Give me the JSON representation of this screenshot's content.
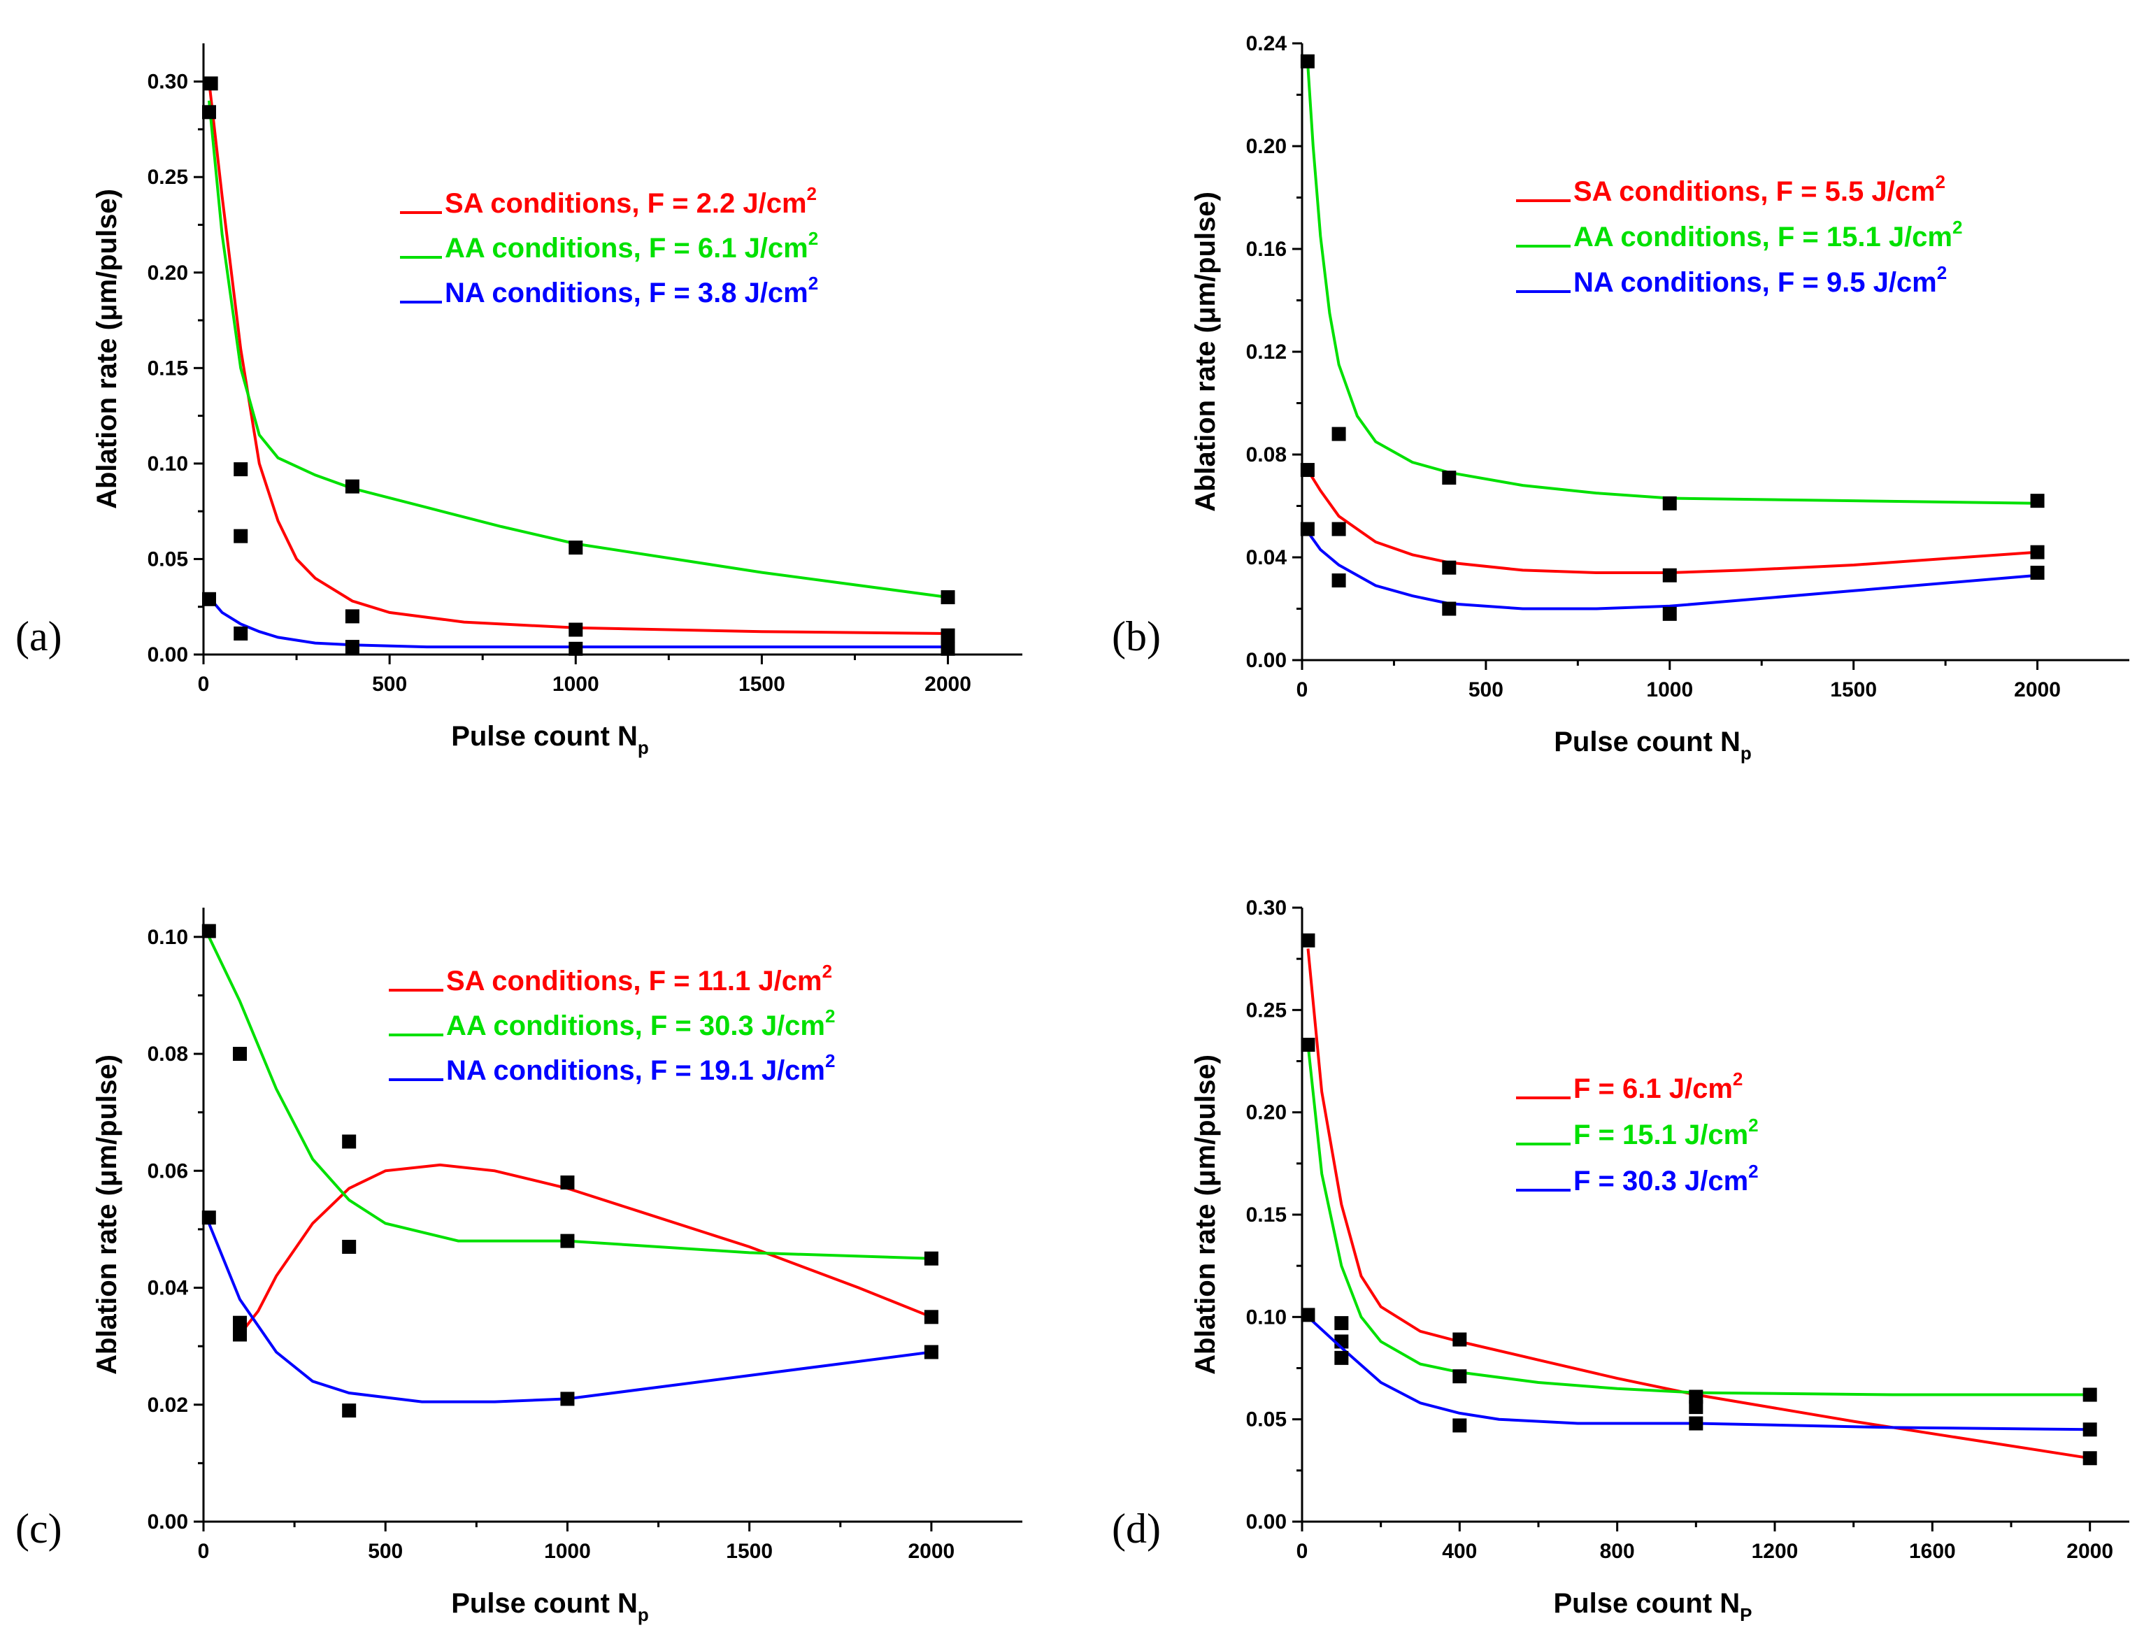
{
  "figure": {
    "panels": [
      "(a)",
      "(b)",
      "(c)",
      "(d)"
    ]
  },
  "chart_data": [
    {
      "id": "a",
      "panel_label": "(a)",
      "type": "scatter",
      "xlabel": "Pulse count N",
      "xlabel_sub": "p",
      "ylabel": "Ablation rate (μm/pulse)",
      "xlim": [
        0,
        2200
      ],
      "ylim": [
        0,
        0.32
      ],
      "xticks": [
        0,
        500,
        1000,
        1500,
        2000
      ],
      "xtick_labels": [
        "0",
        "500",
        "1000",
        "1500",
        "2000"
      ],
      "yticks": [
        0,
        0.05,
        0.1,
        0.15,
        0.2,
        0.25,
        0.3
      ],
      "ytick_labels": [
        "0.00",
        "0.05",
        "0.10",
        "0.15",
        "0.20",
        "0.25",
        "0.30"
      ],
      "legend_position": "top-right",
      "series": [
        {
          "name": "SA conditions, F = 2.2 J/cm",
          "sup": "2",
          "color": "#ff0000",
          "points": [
            [
              20,
              0.299
            ],
            [
              100,
              0.062
            ],
            [
              400,
              0.02
            ],
            [
              1000,
              0.013
            ],
            [
              2000,
              0.01
            ]
          ],
          "fit": [
            [
              15,
              0.3
            ],
            [
              50,
              0.24
            ],
            [
              100,
              0.16
            ],
            [
              150,
              0.1
            ],
            [
              200,
              0.07
            ],
            [
              250,
              0.05
            ],
            [
              300,
              0.04
            ],
            [
              400,
              0.028
            ],
            [
              500,
              0.022
            ],
            [
              700,
              0.017
            ],
            [
              1000,
              0.014
            ],
            [
              1500,
              0.012
            ],
            [
              2000,
              0.011
            ]
          ]
        },
        {
          "name": "AA conditions, F = 6.1 J/cm",
          "sup": "2",
          "color": "#00e000",
          "points": [
            [
              15,
              0.284
            ],
            [
              100,
              0.097
            ],
            [
              400,
              0.088
            ],
            [
              1000,
              0.056
            ],
            [
              2000,
              0.03
            ]
          ],
          "fit": [
            [
              15,
              0.29
            ],
            [
              50,
              0.22
            ],
            [
              100,
              0.15
            ],
            [
              150,
              0.115
            ],
            [
              200,
              0.103
            ],
            [
              300,
              0.094
            ],
            [
              400,
              0.087
            ],
            [
              600,
              0.077
            ],
            [
              800,
              0.067
            ],
            [
              1000,
              0.058
            ],
            [
              1500,
              0.043
            ],
            [
              2000,
              0.03
            ]
          ]
        },
        {
          "name": "NA conditions, F = 3.8 J/cm",
          "sup": "2",
          "color": "#0000ff",
          "points": [
            [
              15,
              0.029
            ],
            [
              100,
              0.011
            ],
            [
              400,
              0.004
            ],
            [
              1000,
              0.003
            ],
            [
              2000,
              0.003
            ]
          ],
          "fit": [
            [
              15,
              0.03
            ],
            [
              50,
              0.022
            ],
            [
              100,
              0.016
            ],
            [
              150,
              0.012
            ],
            [
              200,
              0.009
            ],
            [
              300,
              0.006
            ],
            [
              400,
              0.005
            ],
            [
              600,
              0.004
            ],
            [
              1000,
              0.004
            ],
            [
              1500,
              0.004
            ],
            [
              2000,
              0.004
            ]
          ]
        }
      ]
    },
    {
      "id": "b",
      "panel_label": "(b)",
      "type": "scatter",
      "xlabel": "Pulse count N",
      "xlabel_sub": "p",
      "ylabel": "Ablation rate (μm/pulse)",
      "xlim": [
        0,
        2250
      ],
      "ylim": [
        0,
        0.24
      ],
      "xticks": [
        0,
        500,
        1000,
        1500,
        2000
      ],
      "xtick_labels": [
        "0",
        "500",
        "1000",
        "1500",
        "2000"
      ],
      "yticks": [
        0,
        0.04,
        0.08,
        0.12,
        0.16,
        0.2,
        0.24
      ],
      "ytick_labels": [
        "0.00",
        "0.04",
        "0.08",
        "0.12",
        "0.16",
        "0.20",
        "0.24"
      ],
      "legend_position": "top-right",
      "series": [
        {
          "name": "SA conditions, F = 5.5 J/cm",
          "sup": "2",
          "color": "#ff0000",
          "points": [
            [
              15,
              0.074
            ],
            [
              100,
              0.051
            ],
            [
              400,
              0.036
            ],
            [
              1000,
              0.033
            ],
            [
              2000,
              0.042
            ]
          ],
          "fit": [
            [
              15,
              0.074
            ],
            [
              50,
              0.066
            ],
            [
              100,
              0.056
            ],
            [
              200,
              0.046
            ],
            [
              300,
              0.041
            ],
            [
              400,
              0.038
            ],
            [
              600,
              0.035
            ],
            [
              800,
              0.034
            ],
            [
              1000,
              0.034
            ],
            [
              1200,
              0.035
            ],
            [
              1500,
              0.037
            ],
            [
              2000,
              0.042
            ]
          ]
        },
        {
          "name": "AA conditions, F = 15.1 J/cm",
          "sup": "2",
          "color": "#00e000",
          "points": [
            [
              15,
              0.233
            ],
            [
              100,
              0.088
            ],
            [
              400,
              0.071
            ],
            [
              1000,
              0.061
            ],
            [
              2000,
              0.062
            ]
          ],
          "fit": [
            [
              15,
              0.233
            ],
            [
              30,
              0.2
            ],
            [
              50,
              0.165
            ],
            [
              75,
              0.135
            ],
            [
              100,
              0.115
            ],
            [
              150,
              0.095
            ],
            [
              200,
              0.085
            ],
            [
              300,
              0.077
            ],
            [
              400,
              0.073
            ],
            [
              600,
              0.068
            ],
            [
              800,
              0.065
            ],
            [
              1000,
              0.063
            ],
            [
              1500,
              0.062
            ],
            [
              2000,
              0.061
            ]
          ]
        },
        {
          "name": "NA conditions, F = 9.5 J/cm",
          "sup": "2",
          "color": "#0000ff",
          "points": [
            [
              15,
              0.051
            ],
            [
              100,
              0.031
            ],
            [
              400,
              0.02
            ],
            [
              1000,
              0.018
            ],
            [
              2000,
              0.034
            ]
          ],
          "fit": [
            [
              15,
              0.05
            ],
            [
              50,
              0.043
            ],
            [
              100,
              0.037
            ],
            [
              200,
              0.029
            ],
            [
              300,
              0.025
            ],
            [
              400,
              0.022
            ],
            [
              600,
              0.02
            ],
            [
              800,
              0.02
            ],
            [
              1000,
              0.021
            ],
            [
              1500,
              0.027
            ],
            [
              2000,
              0.033
            ]
          ]
        }
      ]
    },
    {
      "id": "c",
      "panel_label": "(c)",
      "type": "scatter",
      "xlabel": "Pulse count N",
      "xlabel_sub": "p",
      "ylabel": "Ablation rate (μm/pulse)",
      "xlim": [
        0,
        2250
      ],
      "ylim": [
        0,
        0.105
      ],
      "xticks": [
        0,
        500,
        1000,
        1500,
        2000
      ],
      "xtick_labels": [
        "0",
        "500",
        "1000",
        "1500",
        "2000"
      ],
      "yticks": [
        0,
        0.02,
        0.04,
        0.06,
        0.08,
        0.1
      ],
      "ytick_labels": [
        "0.00",
        "0.02",
        "0.04",
        "0.06",
        "0.08",
        "0.10"
      ],
      "legend_position": "top-right",
      "series": [
        {
          "name": "SA conditions, F = 11.1 J/cm",
          "sup": "2",
          "color": "#ff0000",
          "points": [
            [
              100,
              0.034
            ],
            [
              400,
              0.065
            ],
            [
              1000,
              0.058
            ],
            [
              2000,
              0.035
            ]
          ],
          "fit": [
            [
              100,
              0.032
            ],
            [
              150,
              0.036
            ],
            [
              200,
              0.042
            ],
            [
              300,
              0.051
            ],
            [
              400,
              0.057
            ],
            [
              500,
              0.06
            ],
            [
              650,
              0.061
            ],
            [
              800,
              0.06
            ],
            [
              1000,
              0.057
            ],
            [
              1200,
              0.053
            ],
            [
              1500,
              0.047
            ],
            [
              1800,
              0.04
            ],
            [
              2000,
              0.035
            ]
          ]
        },
        {
          "name": "AA conditions, F = 30.3 J/cm",
          "sup": "2",
          "color": "#00e000",
          "points": [
            [
              15,
              0.101
            ],
            [
              100,
              0.08
            ],
            [
              400,
              0.047
            ],
            [
              1000,
              0.048
            ],
            [
              2000,
              0.045
            ]
          ],
          "fit": [
            [
              15,
              0.1
            ],
            [
              100,
              0.089
            ],
            [
              200,
              0.074
            ],
            [
              300,
              0.062
            ],
            [
              400,
              0.055
            ],
            [
              500,
              0.051
            ],
            [
              700,
              0.048
            ],
            [
              1000,
              0.048
            ],
            [
              1500,
              0.046
            ],
            [
              2000,
              0.045
            ]
          ]
        },
        {
          "name": "NA conditions, F = 19.1 J/cm",
          "sup": "2",
          "color": "#0000ff",
          "points": [
            [
              15,
              0.052
            ],
            [
              100,
              0.032
            ],
            [
              400,
              0.019
            ],
            [
              1000,
              0.021
            ],
            [
              2000,
              0.029
            ]
          ],
          "fit": [
            [
              15,
              0.051
            ],
            [
              100,
              0.038
            ],
            [
              200,
              0.029
            ],
            [
              300,
              0.024
            ],
            [
              400,
              0.022
            ],
            [
              600,
              0.0205
            ],
            [
              800,
              0.0205
            ],
            [
              1000,
              0.021
            ],
            [
              1500,
              0.025
            ],
            [
              2000,
              0.029
            ]
          ]
        }
      ]
    },
    {
      "id": "d",
      "panel_label": "(d)",
      "type": "scatter",
      "xlabel": "Pulse count N",
      "xlabel_sub": "P",
      "ylabel": "Ablation rate (μm/pulse)",
      "xlim": [
        0,
        2100
      ],
      "ylim": [
        0,
        0.3
      ],
      "xticks": [
        0,
        400,
        800,
        1200,
        1600,
        2000
      ],
      "xtick_labels": [
        "0",
        "400",
        "800",
        "1200",
        "1600",
        "2000"
      ],
      "yticks": [
        0,
        0.05,
        0.1,
        0.15,
        0.2,
        0.25,
        0.3
      ],
      "ytick_labels": [
        "0.00",
        "0.05",
        "0.10",
        "0.15",
        "0.20",
        "0.25",
        "0.30"
      ],
      "legend_position": "center-right",
      "series": [
        {
          "name": "F = 6.1 J/cm",
          "sup": "2",
          "color": "#ff0000",
          "points": [
            [
              15,
              0.284
            ],
            [
              100,
              0.097
            ],
            [
              400,
              0.089
            ],
            [
              1000,
              0.056
            ],
            [
              2000,
              0.031
            ]
          ],
          "fit": [
            [
              15,
              0.28
            ],
            [
              50,
              0.21
            ],
            [
              100,
              0.155
            ],
            [
              150,
              0.12
            ],
            [
              200,
              0.105
            ],
            [
              300,
              0.093
            ],
            [
              400,
              0.088
            ],
            [
              600,
              0.079
            ],
            [
              800,
              0.07
            ],
            [
              1000,
              0.062
            ],
            [
              1400,
              0.049
            ],
            [
              2000,
              0.031
            ]
          ]
        },
        {
          "name": "F = 15.1 J/cm",
          "sup": "2",
          "color": "#00e000",
          "points": [
            [
              15,
              0.233
            ],
            [
              100,
              0.088
            ],
            [
              400,
              0.071
            ],
            [
              1000,
              0.061
            ],
            [
              2000,
              0.062
            ]
          ],
          "fit": [
            [
              15,
              0.233
            ],
            [
              50,
              0.17
            ],
            [
              100,
              0.125
            ],
            [
              150,
              0.1
            ],
            [
              200,
              0.088
            ],
            [
              300,
              0.077
            ],
            [
              400,
              0.073
            ],
            [
              600,
              0.068
            ],
            [
              800,
              0.065
            ],
            [
              1000,
              0.063
            ],
            [
              1500,
              0.062
            ],
            [
              2000,
              0.062
            ]
          ]
        },
        {
          "name": "F = 30.3 J/cm",
          "sup": "2",
          "color": "#0000ff",
          "points": [
            [
              15,
              0.101
            ],
            [
              100,
              0.08
            ],
            [
              400,
              0.047
            ],
            [
              1000,
              0.048
            ],
            [
              2000,
              0.045
            ]
          ],
          "fit": [
            [
              15,
              0.1
            ],
            [
              100,
              0.085
            ],
            [
              200,
              0.068
            ],
            [
              300,
              0.058
            ],
            [
              400,
              0.053
            ],
            [
              500,
              0.05
            ],
            [
              700,
              0.048
            ],
            [
              1000,
              0.048
            ],
            [
              1500,
              0.046
            ],
            [
              2000,
              0.045
            ]
          ]
        }
      ]
    }
  ]
}
